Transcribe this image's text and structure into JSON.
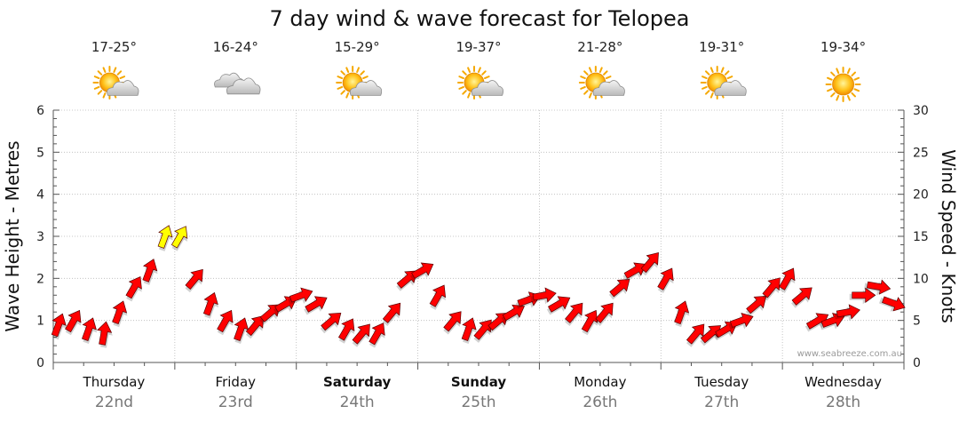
{
  "chart_data": {
    "type": "scatter",
    "title": "7 day wind & wave forecast for Telopea",
    "y_left_label": "Wave Height - Metres",
    "y_right_label": "Wind Speed - Knots",
    "y_left_ticks": [
      "0",
      "1",
      "2",
      "3",
      "4",
      "5",
      "6"
    ],
    "y_right_ticks": [
      "0",
      "5",
      "10",
      "15",
      "20",
      "25",
      "30"
    ],
    "ylim_left": [
      0,
      6
    ],
    "ylim_right": [
      0,
      30
    ],
    "watermark": "www.seabreeze.com.au",
    "days": [
      {
        "day": "Thursday",
        "date": "22nd",
        "temp": "17-25°",
        "icon": "sun-cloud-icon",
        "bold": false
      },
      {
        "day": "Friday",
        "date": "23rd",
        "temp": "16-24°",
        "icon": "cloud-icon",
        "bold": false
      },
      {
        "day": "Saturday",
        "date": "24th",
        "temp": "15-29°",
        "icon": "sun-cloud-icon",
        "bold": true
      },
      {
        "day": "Sunday",
        "date": "25th",
        "temp": "19-37°",
        "icon": "sun-cloud-icon",
        "bold": true
      },
      {
        "day": "Monday",
        "date": "26th",
        "temp": "21-28°",
        "icon": "sun-cloud-icon",
        "bold": false
      },
      {
        "day": "Tuesday",
        "date": "27th",
        "temp": "19-31°",
        "icon": "sun-cloud-icon",
        "bold": false
      },
      {
        "day": "Wednesday",
        "date": "28th",
        "temp": "19-34°",
        "icon": "sun-icon",
        "bold": false
      }
    ],
    "wind_series": {
      "name": "wind",
      "x_hours": [
        0,
        3,
        6,
        9,
        12,
        15,
        18,
        21,
        24,
        27,
        30,
        33,
        36,
        39,
        42,
        45,
        48,
        51,
        54,
        57,
        60,
        63,
        66,
        69,
        72,
        75,
        78,
        81,
        84,
        87,
        90,
        93,
        96,
        99,
        102,
        105,
        108,
        111,
        114,
        117,
        120,
        123,
        126,
        129,
        132,
        135,
        138,
        141,
        144,
        147,
        150,
        153,
        156,
        159,
        162,
        165
      ],
      "speed_knots": [
        4.5,
        5,
        4,
        3.5,
        6,
        9,
        11,
        15,
        15,
        10,
        7,
        5,
        4,
        4.5,
        6,
        7,
        8,
        7,
        5,
        4,
        3.5,
        3.5,
        6,
        10,
        11,
        8,
        5,
        4,
        4,
        5,
        6,
        7.5,
        8,
        7,
        6,
        5,
        6,
        9,
        11,
        12,
        10,
        6,
        3.5,
        3.5,
        4,
        5,
        7,
        9,
        10,
        8,
        5,
        5,
        6,
        8,
        9,
        7
      ],
      "direction_deg": [
        200,
        210,
        200,
        190,
        200,
        210,
        200,
        200,
        210,
        220,
        200,
        210,
        200,
        220,
        230,
        240,
        250,
        240,
        230,
        210,
        220,
        210,
        220,
        230,
        240,
        210,
        220,
        200,
        220,
        230,
        240,
        250,
        260,
        240,
        220,
        210,
        220,
        230,
        240,
        220,
        210,
        200,
        220,
        230,
        240,
        250,
        230,
        220,
        210,
        230,
        240,
        250,
        260,
        270,
        280,
        290
      ],
      "colors": [
        "#ff0000",
        "#ff0000",
        "#ff0000",
        "#ff0000",
        "#ff0000",
        "#ff0000",
        "#ff0000",
        "#ffff00",
        "#ffff00",
        "#ff0000",
        "#ff0000",
        "#ff0000",
        "#ff0000",
        "#ff0000",
        "#ff0000",
        "#ff0000",
        "#ff0000",
        "#ff0000",
        "#ff0000",
        "#ff0000",
        "#ff0000",
        "#ff0000",
        "#ff0000",
        "#ff0000",
        "#ff0000",
        "#ff0000",
        "#ff0000",
        "#ff0000",
        "#ff0000",
        "#ff0000",
        "#ff0000",
        "#ff0000",
        "#ff0000",
        "#ff0000",
        "#ff0000",
        "#ff0000",
        "#ff0000",
        "#ff0000",
        "#ff0000",
        "#ff0000",
        "#ff0000",
        "#ff0000",
        "#ff0000",
        "#ff0000",
        "#ff0000",
        "#ff0000",
        "#ff0000",
        "#ff0000",
        "#ff0000",
        "#ff0000",
        "#ff0000",
        "#ff0000",
        "#ff0000",
        "#ff0000",
        "#ff0000",
        "#ff0000"
      ]
    },
    "grid": true,
    "legend": "none"
  }
}
